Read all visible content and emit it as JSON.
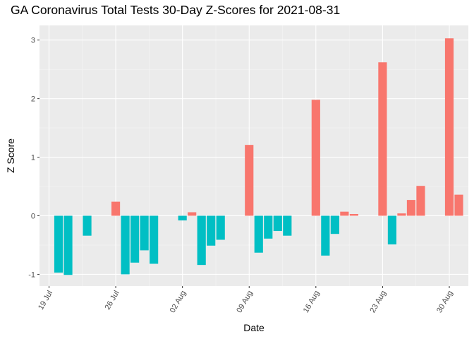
{
  "chart_data": {
    "type": "bar",
    "title": "GA Coronavirus Total Tests 30-Day Z-Scores for 2021-08-31",
    "xlabel": "Date",
    "ylabel": "Z Score",
    "ylim": [
      -1.2,
      3.25
    ],
    "yticks": [
      -1,
      0,
      1,
      2,
      3
    ],
    "xlim": [
      "2021-07-18",
      "2021-09-01"
    ],
    "xticks": [
      {
        "date": "2021-07-19",
        "label": "19 Jul"
      },
      {
        "date": "2021-07-26",
        "label": "26 Jul"
      },
      {
        "date": "2021-08-02",
        "label": "02 Aug"
      },
      {
        "date": "2021-08-09",
        "label": "09 Aug"
      },
      {
        "date": "2021-08-16",
        "label": "16 Aug"
      },
      {
        "date": "2021-08-23",
        "label": "23 Aug"
      },
      {
        "date": "2021-08-30",
        "label": "30 Aug"
      }
    ],
    "grid": true,
    "legend": "none",
    "colors": {
      "positive": "#F8766D",
      "negative": "#00BFC4"
    },
    "x": [
      "2021-07-20",
      "2021-07-21",
      "2021-07-23",
      "2021-07-26",
      "2021-07-27",
      "2021-07-28",
      "2021-07-29",
      "2021-07-30",
      "2021-08-02",
      "2021-08-03",
      "2021-08-04",
      "2021-08-05",
      "2021-08-06",
      "2021-08-09",
      "2021-08-10",
      "2021-08-11",
      "2021-08-12",
      "2021-08-13",
      "2021-08-16",
      "2021-08-17",
      "2021-08-18",
      "2021-08-19",
      "2021-08-20",
      "2021-08-23",
      "2021-08-24",
      "2021-08-25",
      "2021-08-26",
      "2021-08-27",
      "2021-08-30",
      "2021-08-31"
    ],
    "values": [
      -0.97,
      -1.01,
      -0.34,
      0.24,
      -1.0,
      -0.8,
      -0.59,
      -0.82,
      -0.08,
      0.06,
      -0.84,
      -0.51,
      -0.41,
      1.21,
      -0.63,
      -0.39,
      -0.26,
      -0.34,
      1.98,
      -0.68,
      -0.31,
      0.07,
      0.03,
      2.62,
      -0.49,
      0.04,
      0.27,
      0.51,
      3.03,
      0.36
    ]
  }
}
